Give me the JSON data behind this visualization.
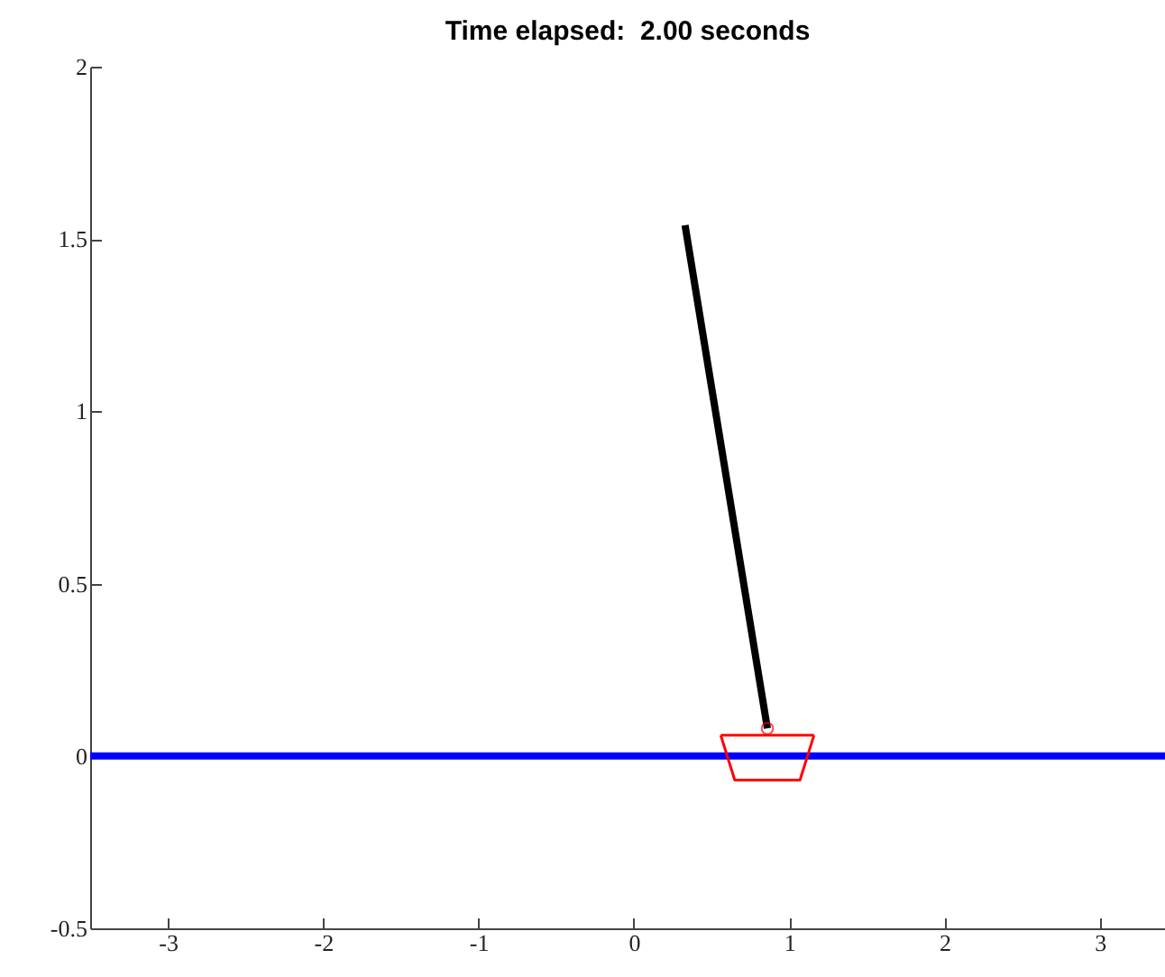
{
  "chart_data": {
    "type": "line",
    "title": "Time elapsed:  2.00 seconds",
    "xlim": [
      -3.5,
      3.42
    ],
    "xticks": [
      -3,
      -2,
      -1,
      0,
      1,
      2,
      3
    ],
    "ylim": [
      -0.5,
      2
    ],
    "yticks": [
      -0.5,
      0,
      0.5,
      1,
      1.5,
      2
    ],
    "grid": false,
    "series": [
      {
        "color": "#0000ff",
        "x": [
          -3.5,
          3.42
        ],
        "values": [
          0,
          0
        ]
      },
      {
        "color": "#ff0000",
        "x": [
          0.56,
          1.16
        ],
        "values": [
          0.06,
          0.06
        ]
      },
      {
        "color": "#ff0000",
        "x": [
          0.56,
          0.65,
          1.07,
          1.16
        ],
        "values": [
          0.06,
          -0.07,
          -0.07,
          0.06
        ]
      },
      {
        "color": "#000000",
        "x": [
          0.86,
          0.33
        ],
        "values": [
          0.08,
          1.54
        ]
      },
      {
        "type": "scatter",
        "marker": "circle",
        "color": "#ff0000",
        "x": [
          0.86
        ],
        "values": [
          0.08
        ]
      }
    ]
  }
}
